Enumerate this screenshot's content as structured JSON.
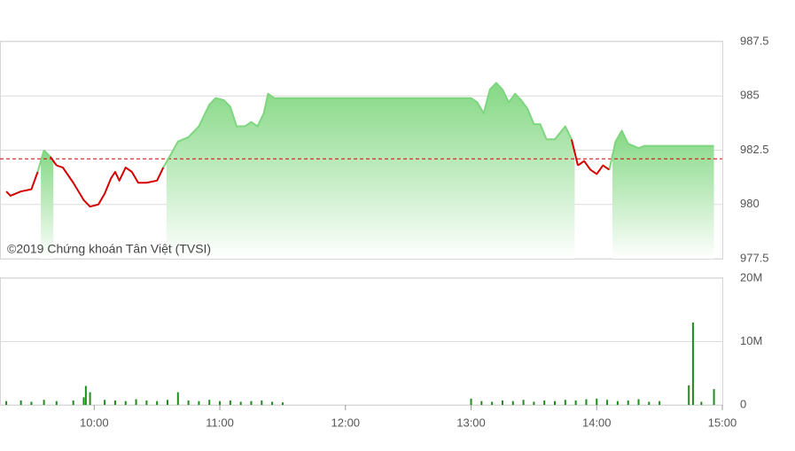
{
  "chart_data": [
    {
      "type": "line",
      "watermark": "©2019 Chứng khoán Tân Việt (TVSI)",
      "x": [
        "09:18",
        "09:20",
        "09:25",
        "09:30",
        "09:33",
        "09:36",
        "09:39",
        "09:42",
        "09:45",
        "09:50",
        "09:55",
        "09:58",
        "10:02",
        "10:05",
        "10:08",
        "10:10",
        "10:12",
        "10:15",
        "10:18",
        "10:21",
        "10:25",
        "10:30",
        "10:33",
        "10:36",
        "10:40",
        "10:45",
        "10:50",
        "10:55",
        "10:58",
        "11:02",
        "11:05",
        "11:08",
        "11:12",
        "11:15",
        "11:18",
        "11:21",
        "11:23",
        "11:26",
        "11:30",
        "13:00",
        "13:03",
        "13:06",
        "13:09",
        "13:12",
        "13:15",
        "13:18",
        "13:21",
        "13:24",
        "13:27",
        "13:30",
        "13:33",
        "13:36",
        "13:40",
        "13:45",
        "13:48",
        "13:51",
        "13:54",
        "13:57",
        "14:00",
        "14:03",
        "14:06",
        "14:09",
        "14:12",
        "14:15",
        "14:20",
        "14:23",
        "14:30",
        "14:56"
      ],
      "values": [
        980.6,
        980.4,
        980.6,
        980.7,
        981.5,
        982.5,
        982.2,
        981.8,
        981.7,
        981.0,
        980.2,
        979.9,
        980.0,
        980.5,
        981.2,
        981.5,
        981.1,
        981.7,
        981.5,
        981.0,
        981.0,
        981.1,
        981.7,
        982.2,
        982.9,
        983.1,
        983.6,
        984.6,
        984.9,
        984.8,
        984.5,
        983.6,
        983.6,
        983.8,
        983.6,
        984.2,
        985.1,
        984.9,
        984.9,
        984.9,
        984.7,
        984.2,
        985.3,
        985.6,
        985.3,
        984.7,
        985.1,
        984.8,
        984.4,
        983.7,
        983.7,
        983.0,
        983.0,
        983.6,
        983.0,
        981.8,
        982.0,
        981.6,
        981.4,
        981.8,
        981.6,
        982.9,
        983.4,
        982.8,
        982.6,
        982.7,
        982.7,
        982.7
      ],
      "reference": 982.1,
      "color_above": "#7ed67e",
      "color_below": "#d40000",
      "reference_color": "#d40000",
      "xlim": [
        "09:15",
        "15:00"
      ],
      "ylim": [
        977.5,
        987.5
      ],
      "yticks": [
        977.5,
        980,
        982.5,
        985,
        987.5
      ],
      "grid": true
    },
    {
      "type": "bar",
      "x": [
        "09:18",
        "09:25",
        "09:30",
        "09:36",
        "09:42",
        "09:50",
        "09:55",
        "09:56",
        "09:58",
        "10:05",
        "10:10",
        "10:15",
        "10:20",
        "10:25",
        "10:30",
        "10:35",
        "10:40",
        "10:45",
        "10:50",
        "10:55",
        "11:00",
        "11:05",
        "11:10",
        "11:15",
        "11:20",
        "11:25",
        "11:30",
        "13:00",
        "13:05",
        "13:10",
        "13:15",
        "13:20",
        "13:25",
        "13:30",
        "13:35",
        "13:40",
        "13:45",
        "13:50",
        "13:55",
        "14:00",
        "14:05",
        "14:10",
        "14:15",
        "14:20",
        "14:25",
        "14:30",
        "14:44",
        "14:46",
        "14:50",
        "14:56"
      ],
      "values": [
        600000,
        700000,
        500000,
        800000,
        600000,
        700000,
        1200000,
        3000000,
        2000000,
        800000,
        700000,
        600000,
        900000,
        700000,
        600000,
        800000,
        2000000,
        700000,
        600000,
        800000,
        600000,
        700000,
        500000,
        600000,
        700000,
        500000,
        400000,
        1000000,
        600000,
        500000,
        700000,
        600000,
        800000,
        500000,
        700000,
        600000,
        800000,
        700000,
        900000,
        1000000,
        800000,
        600000,
        700000,
        900000,
        500000,
        600000,
        3100000,
        13000000,
        500000,
        2500000
      ],
      "color": "#1e8c1e",
      "xlim": [
        "09:15",
        "15:00"
      ],
      "xticks": [
        "10:00",
        "11:00",
        "12:00",
        "13:00",
        "14:00",
        "15:00"
      ],
      "ylim": [
        0,
        20000000
      ],
      "yticks": [
        0,
        {
          "value": 10000000,
          "label": "10M"
        },
        {
          "value": 20000000,
          "label": "20M"
        }
      ],
      "grid": true
    }
  ]
}
